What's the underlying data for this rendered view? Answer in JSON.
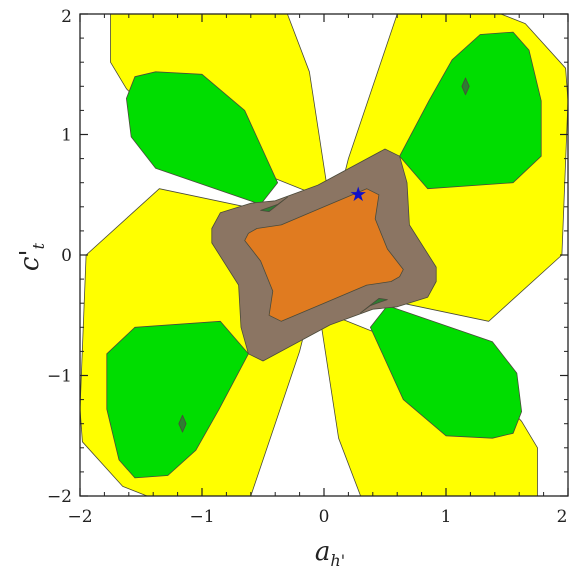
{
  "chart_data": {
    "type": "contour",
    "xlabel_main": "a",
    "xlabel_sub": "h'",
    "ylabel_main": "c'",
    "ylabel_sub": "t",
    "xlim": [
      -2,
      2
    ],
    "ylim": [
      -2,
      2
    ],
    "x_ticks": [
      "−2",
      "−1",
      "0",
      "1",
      "2"
    ],
    "y_ticks": [
      "−2",
      "−1",
      "0",
      "1",
      "2"
    ],
    "grid": false,
    "marker": {
      "symbol": "★",
      "x": 0.28,
      "y": 0.5,
      "color": "#1010c8"
    },
    "colors": {
      "yellow": "#ffff00",
      "green": "#00dd00",
      "dark_green": "#2e7d32",
      "brown": "#8b7563",
      "orange": "#e07b20"
    },
    "regions": [
      {
        "color": "yellow",
        "lobe": "top-left",
        "points": [
          [
            -1.75,
            2.0
          ],
          [
            -0.3,
            2.0
          ],
          [
            -0.12,
            1.52
          ],
          [
            0.02,
            0.6
          ],
          [
            -0.12,
            0.52
          ],
          [
            -1.25,
            0.98
          ],
          [
            -1.62,
            1.38
          ],
          [
            -1.75,
            1.6
          ]
        ]
      },
      {
        "color": "yellow",
        "lobe": "top-right",
        "points": [
          [
            0.6,
            2.0
          ],
          [
            1.45,
            2.0
          ],
          [
            1.65,
            1.92
          ],
          [
            1.98,
            1.55
          ],
          [
            2.0,
            1.28
          ],
          [
            1.95,
            0.0
          ],
          [
            1.35,
            -0.55
          ],
          [
            0.55,
            -0.38
          ],
          [
            0.0,
            0.0
          ],
          [
            0.2,
            0.8
          ]
        ]
      },
      {
        "color": "yellow",
        "lobe": "bottom-left",
        "points": [
          [
            -2.0,
            -1.28
          ],
          [
            -1.95,
            0.0
          ],
          [
            -1.35,
            0.55
          ],
          [
            -0.55,
            0.38
          ],
          [
            0.0,
            0.0
          ],
          [
            -0.2,
            -0.8
          ],
          [
            -0.6,
            -2.0
          ],
          [
            -1.45,
            -2.0
          ],
          [
            -1.65,
            -1.92
          ],
          [
            -1.98,
            -1.55
          ]
        ]
      },
      {
        "color": "yellow",
        "lobe": "bottom-right",
        "points": [
          [
            1.75,
            -2.0
          ],
          [
            0.3,
            -2.0
          ],
          [
            0.12,
            -1.52
          ],
          [
            -0.02,
            -0.6
          ],
          [
            0.12,
            -0.52
          ],
          [
            1.25,
            -0.98
          ],
          [
            1.62,
            -1.38
          ],
          [
            1.75,
            -1.6
          ]
        ]
      },
      {
        "color": "green",
        "lobe": "top-left",
        "points": [
          [
            -1.55,
            1.48
          ],
          [
            -1.38,
            1.52
          ],
          [
            -1.0,
            1.5
          ],
          [
            -0.65,
            1.2
          ],
          [
            -0.38,
            0.6
          ],
          [
            -0.52,
            0.42
          ],
          [
            -1.38,
            0.72
          ],
          [
            -1.58,
            0.98
          ],
          [
            -1.62,
            1.3
          ]
        ]
      },
      {
        "color": "green",
        "lobe": "top-right",
        "points": [
          [
            1.28,
            1.83
          ],
          [
            1.55,
            1.85
          ],
          [
            1.68,
            1.7
          ],
          [
            1.78,
            1.28
          ],
          [
            1.78,
            0.82
          ],
          [
            1.55,
            0.6
          ],
          [
            0.85,
            0.55
          ],
          [
            0.62,
            0.82
          ],
          [
            0.86,
            1.28
          ],
          [
            1.05,
            1.62
          ]
        ]
      },
      {
        "color": "green",
        "lobe": "bottom-left",
        "points": [
          [
            -1.28,
            -1.83
          ],
          [
            -1.55,
            -1.85
          ],
          [
            -1.68,
            -1.7
          ],
          [
            -1.78,
            -1.28
          ],
          [
            -1.78,
            -0.82
          ],
          [
            -1.55,
            -0.6
          ],
          [
            -0.85,
            -0.55
          ],
          [
            -0.62,
            -0.82
          ],
          [
            -0.86,
            -1.28
          ],
          [
            -1.05,
            -1.62
          ]
        ]
      },
      {
        "color": "green",
        "lobe": "bottom-right",
        "points": [
          [
            1.55,
            -1.48
          ],
          [
            1.38,
            -1.52
          ],
          [
            1.0,
            -1.5
          ],
          [
            0.65,
            -1.2
          ],
          [
            0.38,
            -0.6
          ],
          [
            0.52,
            -0.42
          ],
          [
            1.38,
            -0.72
          ],
          [
            1.58,
            -0.98
          ],
          [
            1.62,
            -1.3
          ]
        ]
      },
      {
        "color": "brown",
        "lobe": "center-outer",
        "points": [
          [
            -0.92,
            0.22
          ],
          [
            -0.85,
            0.35
          ],
          [
            -0.6,
            0.43
          ],
          [
            -0.4,
            0.45
          ],
          [
            -0.05,
            0.58
          ],
          [
            0.5,
            0.88
          ],
          [
            0.62,
            0.82
          ],
          [
            0.68,
            0.6
          ],
          [
            0.7,
            0.25
          ],
          [
            0.92,
            -0.1
          ],
          [
            0.92,
            -0.22
          ],
          [
            0.85,
            -0.35
          ],
          [
            0.6,
            -0.43
          ],
          [
            0.4,
            -0.45
          ],
          [
            0.05,
            -0.58
          ],
          [
            -0.5,
            -0.88
          ],
          [
            -0.62,
            -0.82
          ],
          [
            -0.68,
            -0.6
          ],
          [
            -0.7,
            -0.25
          ],
          [
            -0.92,
            0.1
          ]
        ]
      },
      {
        "color": "dark_green",
        "lobe": "top-left-patch",
        "points": [
          [
            -0.52,
            0.37
          ],
          [
            -0.38,
            0.42
          ],
          [
            -0.3,
            0.48
          ],
          [
            -0.45,
            0.36
          ]
        ]
      },
      {
        "color": "dark_green",
        "lobe": "bottom-right-patch",
        "points": [
          [
            0.52,
            -0.37
          ],
          [
            0.38,
            -0.42
          ],
          [
            0.3,
            -0.48
          ],
          [
            0.45,
            -0.36
          ]
        ]
      },
      {
        "color": "orange",
        "lobe": "center-inner",
        "points": [
          [
            -0.62,
            0.18
          ],
          [
            -0.55,
            0.22
          ],
          [
            -0.35,
            0.25
          ],
          [
            0.0,
            0.4
          ],
          [
            0.35,
            0.55
          ],
          [
            0.45,
            0.5
          ],
          [
            0.42,
            0.3
          ],
          [
            0.52,
            0.05
          ],
          [
            0.65,
            -0.12
          ],
          [
            0.62,
            -0.18
          ],
          [
            0.55,
            -0.22
          ],
          [
            0.35,
            -0.25
          ],
          [
            0.0,
            -0.4
          ],
          [
            -0.35,
            -0.55
          ],
          [
            -0.45,
            -0.5
          ],
          [
            -0.42,
            -0.3
          ],
          [
            -0.52,
            -0.05
          ],
          [
            -0.65,
            0.12
          ]
        ]
      },
      {
        "color": "dark_green",
        "lobe": "top-right-dot",
        "points": [
          [
            1.13,
            1.4
          ],
          [
            1.16,
            1.33
          ],
          [
            1.19,
            1.4
          ],
          [
            1.16,
            1.47
          ]
        ]
      },
      {
        "color": "dark_green",
        "lobe": "bottom-left-dot",
        "points": [
          [
            -1.13,
            -1.4
          ],
          [
            -1.16,
            -1.33
          ],
          [
            -1.19,
            -1.4
          ],
          [
            -1.16,
            -1.47
          ]
        ]
      }
    ]
  }
}
